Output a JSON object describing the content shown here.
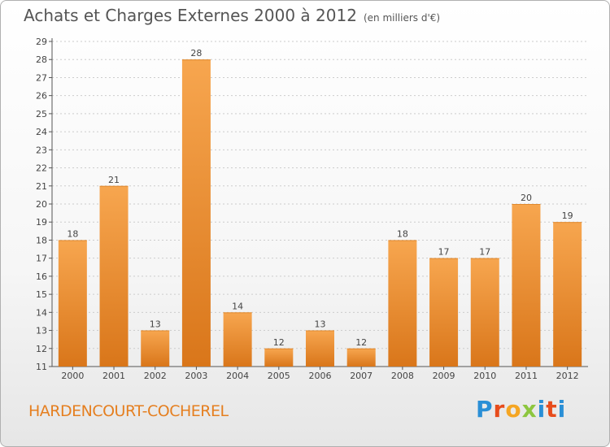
{
  "header": {
    "title": "Achats et Charges Externes 2000 à 2012",
    "unit": "(en milliers d'€)"
  },
  "footer": {
    "commune": "HARDENCOURT-COCHEREL",
    "logo": "Proxiti"
  },
  "colors": {
    "bar_light": "#f7a64f",
    "bar_dark": "#d9761a",
    "axis": "#555555",
    "grid": "#cccccc",
    "commune": "#e57f20"
  },
  "chart_data": {
    "type": "bar",
    "title": "Achats et Charges Externes 2000 à 2012",
    "subtitle": "(en milliers d'€)",
    "categories": [
      "2000",
      "2001",
      "2002",
      "2003",
      "2004",
      "2005",
      "2006",
      "2007",
      "2008",
      "2009",
      "2010",
      "2011",
      "2012"
    ],
    "values": [
      18,
      21,
      13,
      28,
      14,
      12,
      13,
      12,
      18,
      17,
      17,
      20,
      19
    ],
    "ylim": [
      11,
      29
    ],
    "yticks": [
      11,
      12,
      13,
      14,
      15,
      16,
      17,
      18,
      19,
      20,
      21,
      22,
      23,
      24,
      25,
      26,
      27,
      28,
      29
    ],
    "grid": "horizontal dashed",
    "legend": "none"
  }
}
